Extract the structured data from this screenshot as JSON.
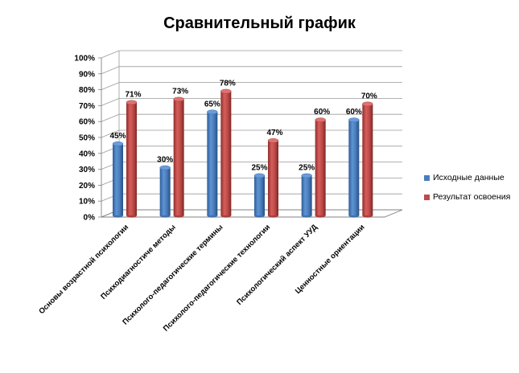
{
  "chart_data": {
    "type": "bar",
    "title": "Сравнительный график",
    "categories": [
      "Основы возрастной психологии",
      "Психодиагностиче методы",
      "Психолого-педагогические термины",
      "Психолого-педагогические технологии",
      "Психологический аспект УУД",
      "Ценностные ориентации"
    ],
    "series": [
      {
        "name": "Исходные данные",
        "values": [
          45,
          30,
          65,
          25,
          25,
          60
        ],
        "color": "#4a7ebb"
      },
      {
        "name": "Результат освоения",
        "values": [
          71,
          73,
          78,
          47,
          60,
          70
        ],
        "color": "#be4b48"
      }
    ],
    "data_labels": [
      [
        "45%",
        "30%",
        "65%",
        "25%",
        "25%",
        "60%"
      ],
      [
        "71%",
        "73%",
        "78%",
        "47%",
        "60%",
        "70%"
      ]
    ],
    "y_ticks": [
      "0%",
      "10%",
      "20%",
      "30%",
      "40%",
      "50%",
      "60%",
      "70%",
      "80%",
      "90%",
      "100%"
    ],
    "ylim": [
      0,
      100
    ],
    "grid": true,
    "legend_position": "right",
    "style": "3d-cylinder"
  }
}
